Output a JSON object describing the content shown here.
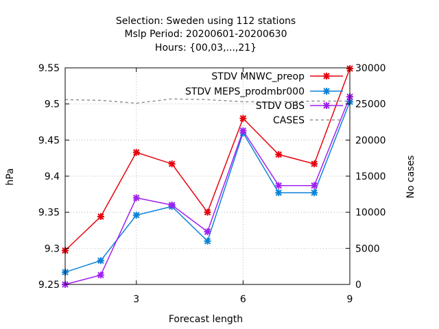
{
  "chart_data": {
    "type": "line",
    "title_lines": [
      "Selection: Sweden using   112 stations",
      "Mslp   Period: 20200601-20200630",
      "Hours: {00,03,...,21}"
    ],
    "xlabel": "Forecast length",
    "ylabel": "hPa",
    "y2label": "No cases",
    "xlim": [
      1,
      9
    ],
    "ylim": [
      9.25,
      9.55
    ],
    "y2lim": [
      0,
      30000
    ],
    "xticks": [
      3,
      6,
      9
    ],
    "yticks": [
      9.25,
      9.3,
      9.35,
      9.4,
      9.45,
      9.5,
      9.55
    ],
    "y2ticks": [
      0,
      5000,
      10000,
      15000,
      20000,
      25000,
      30000
    ],
    "xtick_labels": [
      "3",
      "6",
      "9"
    ],
    "ytick_labels": [
      "9.25",
      "9.3",
      "9.35",
      "9.4",
      "9.45",
      "9.5",
      "9.55"
    ],
    "y2tick_labels": [
      "0",
      "5000",
      "10000",
      "15000",
      "20000",
      "25000",
      "30000"
    ],
    "grid": true,
    "legend_position": "top-right",
    "x": [
      1,
      2,
      3,
      4,
      5,
      6,
      7,
      8,
      9
    ],
    "series": [
      {
        "name": "STDV MNWC_preop",
        "color": "#e8000b",
        "axis": "y1",
        "style": "solid-marker",
        "values": [
          9.297,
          9.344,
          9.433,
          9.417,
          9.35,
          9.48,
          9.43,
          9.417,
          9.549
        ]
      },
      {
        "name": "STDV MEPS_prodmbr000",
        "color": "#0c82d9",
        "axis": "y1",
        "style": "solid-marker",
        "values": [
          9.267,
          9.283,
          9.346,
          9.358,
          9.31,
          9.46,
          9.377,
          9.377,
          9.503
        ]
      },
      {
        "name": "STDV OBS",
        "color": "#a020f0",
        "axis": "y1",
        "style": "solid-marker",
        "values": [
          9.25,
          9.263,
          9.37,
          9.36,
          9.323,
          9.463,
          9.387,
          9.387,
          9.51
        ]
      },
      {
        "name": "CASES",
        "color": "#909090",
        "axis": "y2",
        "style": "dashed",
        "values": [
          25600,
          25500,
          25100,
          25700,
          25600,
          25300,
          25300,
          25400,
          25400
        ]
      }
    ]
  }
}
